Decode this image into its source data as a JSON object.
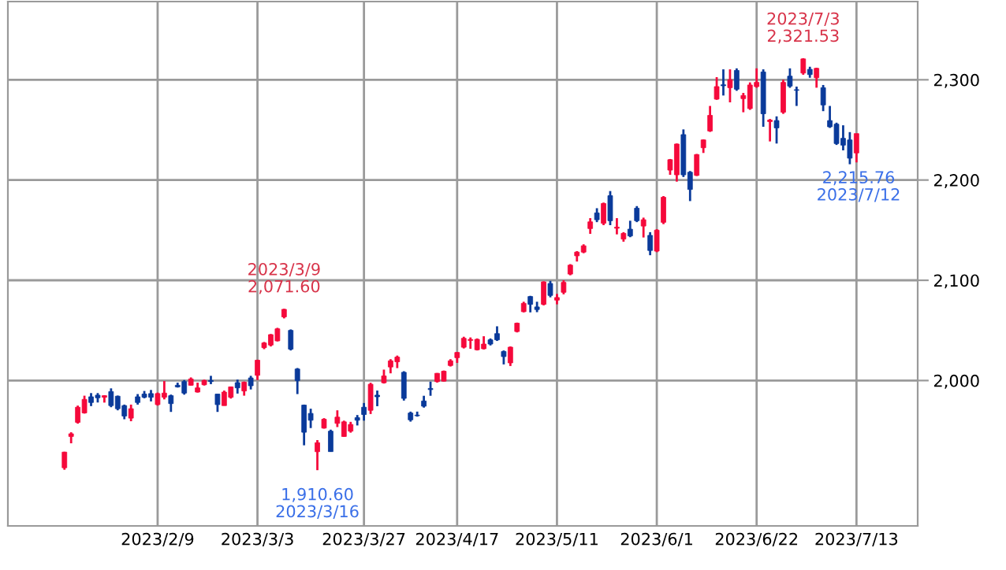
{
  "chart_data": {
    "type": "candlestick",
    "categories": [
      null,
      null,
      null,
      null,
      null,
      null,
      null,
      null,
      null,
      null,
      null,
      null,
      null,
      null,
      "2023/2/9",
      null,
      null,
      null,
      null,
      null,
      null,
      null,
      null,
      null,
      null,
      null,
      null,
      null,
      null,
      "2023/3/3",
      null,
      null,
      null,
      null,
      null,
      null,
      null,
      null,
      null,
      null,
      null,
      null,
      null,
      null,
      null,
      "2023/3/27",
      null,
      null,
      null,
      null,
      null,
      null,
      null,
      null,
      null,
      null,
      null,
      null,
      null,
      "2023/4/17",
      null,
      null,
      null,
      null,
      null,
      null,
      null,
      null,
      null,
      null,
      null,
      null,
      null,
      null,
      "2023/5/11",
      null,
      null,
      null,
      null,
      null,
      null,
      null,
      null,
      null,
      null,
      null,
      null,
      null,
      null,
      "2023/6/1",
      null,
      null,
      null,
      null,
      null,
      null,
      null,
      null,
      null,
      null,
      null,
      null,
      null,
      null,
      "2023/6/22",
      null,
      null,
      null,
      null,
      null,
      null,
      null,
      null,
      null,
      null,
      null,
      null,
      null,
      null,
      "2023/7/13"
    ],
    "ohlc": [
      [
        1913,
        1929,
        1911,
        1928.6
      ],
      [
        1944.2,
        1948.4,
        1937.4,
        1946.9
      ],
      [
        1958.3,
        1975,
        1957,
        1973.4
      ],
      [
        1967.7,
        1984.9,
        1967,
        1981.2
      ],
      [
        1983.8,
        1987.5,
        1974.5,
        1978.1
      ],
      [
        1985.4,
        1987.5,
        1978.1,
        1982.8
      ],
      [
        1983.3,
        1985.4,
        1978,
        1984.9
      ],
      [
        1989,
        1992.2,
        1973.4,
        1975
      ],
      [
        1984.4,
        1985,
        1970.3,
        1971.9
      ],
      [
        1975,
        1976,
        1961.4,
        1964.6
      ],
      [
        1962.5,
        1976,
        1959.4,
        1971.9
      ],
      [
        1983.8,
        1986.5,
        1976,
        1978.1
      ],
      [
        1986.5,
        1989.6,
        1982.3,
        1983.3
      ],
      [
        1987,
        1990.6,
        1979.2,
        1983.3
      ],
      [
        1976,
        1988,
        1975,
        1987
      ],
      [
        1983.3,
        1999.5,
        1981.2,
        1987.5
      ],
      [
        1984.9,
        1986,
        1968.7,
        1977
      ],
      [
        1995.3,
        1997.9,
        1993,
        1993.7
      ],
      [
        1999,
        2000.5,
        1985.9,
        1987.5
      ],
      [
        1995.3,
        2003.1,
        1995,
        2001.6
      ],
      [
        1988.5,
        1997.9,
        1988,
        1992.7
      ],
      [
        1995.8,
        2001,
        1995,
        2000
      ],
      [
        2000,
        2004.7,
        1996.4,
        1999
      ],
      [
        1986.5,
        1986.5,
        1968.7,
        1976
      ],
      [
        1975,
        1990,
        1975,
        1988.5
      ],
      [
        1983.3,
        1994,
        1982,
        1993.7
      ],
      [
        1997.9,
        2001,
        1987,
        1992.7
      ],
      [
        1989.6,
        1999,
        1984.9,
        1998.4
      ],
      [
        2002.6,
        2004.7,
        1991.1,
        1994.8
      ],
      [
        2005.2,
        2020.8,
        2000.5,
        2020.3
      ],
      [
        2032.8,
        2038.5,
        2031.3,
        2037.5
      ],
      [
        2035.4,
        2046.4,
        2034,
        2045.8
      ],
      [
        2039.6,
        2052.6,
        2039,
        2051.6
      ],
      [
        2063.5,
        2071.6,
        2062,
        2071
      ],
      [
        2050,
        2051,
        2030,
        2031.3
      ],
      [
        2011.5,
        2012.5,
        1986.5,
        2000
      ],
      [
        1975.5,
        1976,
        1935.4,
        1948.4
      ],
      [
        1967.2,
        1971.9,
        1952.6,
        1960.4
      ],
      [
        1929,
        1940.6,
        1910.6,
        1938
      ],
      [
        1952.6,
        1962.5,
        1952,
        1961.4
      ],
      [
        1949.5,
        1951,
        1929,
        1929.1
      ],
      [
        1957.3,
        1970.3,
        1953.6,
        1963.5
      ],
      [
        1944.2,
        1960,
        1944,
        1958.8
      ],
      [
        1949.5,
        1958.8,
        1948,
        1956.2
      ],
      [
        1963,
        1965.6,
        1955.2,
        1960.4
      ],
      [
        1973.4,
        1977.6,
        1960,
        1966.1
      ],
      [
        1970.3,
        1997.8,
        1966.6,
        1996.3
      ],
      [
        1985.4,
        1990,
        1974.4,
        1983.8
      ],
      [
        1997.8,
        2010.9,
        1997,
        2004.6
      ],
      [
        2013.5,
        2021.3,
        2007.2,
        2019.7
      ],
      [
        2018.7,
        2024.9,
        2012.4,
        2023.4
      ],
      [
        2008.2,
        2009.3,
        1980,
        1982.2
      ],
      [
        1967.6,
        1969,
        1959,
        1960.8
      ],
      [
        1965.5,
        1969,
        1964,
        1964.9
      ],
      [
        1979.6,
        1984.8,
        1973,
        1974.4
      ],
      [
        1992.1,
        1998.9,
        1984.8,
        1991
      ],
      [
        1998.9,
        2007.5,
        1998,
        2007.2
      ],
      [
        1999.4,
        2010,
        1999,
        2009.3
      ],
      [
        2015,
        2021.3,
        2014,
        2019.7
      ],
      [
        2022.8,
        2028.5,
        2017.6,
        2028
      ],
      [
        2033.2,
        2043.7,
        2032,
        2042.1
      ],
      [
        2040,
        2043,
        2031.7,
        2041
      ],
      [
        2030.7,
        2042,
        2030,
        2041.1
      ],
      [
        2031.7,
        2044.2,
        2031,
        2036.4
      ],
      [
        2040.6,
        2042,
        2035,
        2036.4
      ],
      [
        2046.8,
        2054.1,
        2039.5,
        2040.6
      ],
      [
        2029,
        2030,
        2016.1,
        2023.9
      ],
      [
        2017.6,
        2034,
        2014.5,
        2033.3
      ],
      [
        2048.9,
        2057.8,
        2048,
        2057.2
      ],
      [
        2068.7,
        2078.6,
        2068,
        2077
      ],
      [
        2083.8,
        2084.5,
        2068,
        2076
      ],
      [
        2073.4,
        2078.6,
        2068.2,
        2070.8
      ],
      [
        2076,
        2099,
        2075,
        2098.4
      ],
      [
        2096.8,
        2099.4,
        2083,
        2084.9
      ],
      [
        2080.2,
        2086.4,
        2076,
        2082.8
      ],
      [
        2088,
        2100,
        2086,
        2097.9
      ],
      [
        2106.2,
        2116.1,
        2105,
        2115.1
      ],
      [
        2124.4,
        2129.1,
        2118.7,
        2128.1
      ],
      [
        2128.1,
        2135.9,
        2127,
        2134.4
      ],
      [
        2151.6,
        2162,
        2146.3,
        2158.3
      ],
      [
        2167.2,
        2171.9,
        2158,
        2160.4
      ],
      [
        2156.8,
        2177.5,
        2155,
        2176.6
      ],
      [
        2184.4,
        2189,
        2155,
        2159.4
      ],
      [
        2151.9,
        2162,
        2145.8,
        2153
      ],
      [
        2141.1,
        2148,
        2138.5,
        2146.8
      ],
      [
        2151,
        2159.4,
        2143,
        2144.2
      ],
      [
        2171.9,
        2174,
        2158,
        2159.4
      ],
      [
        2154.1,
        2162.5,
        2142.7,
        2160.4
      ],
      [
        2144.8,
        2148,
        2125,
        2129.7
      ],
      [
        2129.1,
        2151,
        2128,
        2150
      ],
      [
        2157.8,
        2184,
        2156,
        2182.8
      ],
      [
        2209.9,
        2221,
        2205.2,
        2220.3
      ],
      [
        2205.2,
        2236.4,
        2198.4,
        2235.9
      ],
      [
        2245.3,
        2250.5,
        2203,
        2205.2
      ],
      [
        2207.8,
        2209,
        2179,
        2190.6
      ],
      [
        2204.6,
        2226,
        2204,
        2225.4
      ],
      [
        2232.2,
        2240.5,
        2227,
        2240
      ],
      [
        2248.9,
        2273.9,
        2248,
        2264.5
      ],
      [
        2280.7,
        2302.6,
        2280,
        2293.2
      ],
      [
        2295,
        2310.4,
        2284.3,
        2294
      ],
      [
        2292.1,
        2310.4,
        2277.5,
        2300
      ],
      [
        2309.3,
        2311.4,
        2289,
        2290.6
      ],
      [
        2281.2,
        2286.9,
        2267.6,
        2284.3
      ],
      [
        2271.3,
        2297.4,
        2270,
        2294.8
      ],
      [
        2293.2,
        2311.4,
        2292,
        2297.4
      ],
      [
        2307.8,
        2310.4,
        2253.1,
        2266.1
      ],
      [
        2258.3,
        2260.9,
        2238.5,
        2259.8
      ],
      [
        2259.3,
        2263.5,
        2236.4,
        2252
      ],
      [
        2267.6,
        2300,
        2266,
        2297.4
      ],
      [
        2303.6,
        2311.4,
        2292,
        2293.7
      ],
      [
        2290,
        2293.2,
        2273.9,
        2289.5
      ],
      [
        2306.7,
        2321.53,
        2305,
        2320.8
      ],
      [
        2310.4,
        2313,
        2302,
        2305.2
      ],
      [
        2302,
        2312,
        2292.1,
        2311.4
      ],
      [
        2292.1,
        2294.8,
        2268.7,
        2274.9
      ],
      [
        2259.3,
        2273.9,
        2252,
        2253.1
      ],
      [
        2255.7,
        2257.2,
        2235,
        2236.4
      ],
      [
        2241.6,
        2254.6,
        2229.6,
        2234.8
      ],
      [
        2240,
        2247.8,
        2215.76,
        2221.8
      ],
      [
        2227,
        2246.3,
        2217.6,
        2246.3
      ]
    ],
    "colors": [
      "#f5093b",
      "#f5093b",
      "#f5093b",
      "#f5093b",
      "#0a3a9a",
      "#0a3a9a",
      "#f5093b",
      "#0a3a9a",
      "#0a3a9a",
      "#0a3a9a",
      "#f5093b",
      "#0a3a9a",
      "#0a3a9a",
      "#0a3a9a",
      "#f5093b",
      "#f5093b",
      "#0a3a9a",
      "#0a3a9a",
      "#0a3a9a",
      "#f5093b",
      "#f5093b",
      "#f5093b",
      "#0a3a9a",
      "#0a3a9a",
      "#f5093b",
      "#f5093b",
      "#0a3a9a",
      "#f5093b",
      "#0a3a9a",
      "#f5093b",
      "#f5093b",
      "#f5093b",
      "#f5093b",
      "#f5093b",
      "#0a3a9a",
      "#0a3a9a",
      "#0a3a9a",
      "#0a3a9a",
      "#f5093b",
      "#f5093b",
      "#0a3a9a",
      "#f5093b",
      "#f5093b",
      "#f5093b",
      "#0a3a9a",
      "#0a3a9a",
      "#f5093b",
      "#0a3a9a",
      "#f5093b",
      "#f5093b",
      "#f5093b",
      "#0a3a9a",
      "#0a3a9a",
      "#0a3a9a",
      "#0a3a9a",
      "#0a3a9a",
      "#f5093b",
      "#f5093b",
      "#f5093b",
      "#f5093b",
      "#f5093b",
      "#f5093b",
      "#f5093b",
      "#f5093b",
      "#0a3a9a",
      "#0a3a9a",
      "#0a3a9a",
      "#f5093b",
      "#f5093b",
      "#f5093b",
      "#0a3a9a",
      "#0a3a9a",
      "#f5093b",
      "#0a3a9a",
      "#f5093b",
      "#f5093b",
      "#f5093b",
      "#f5093b",
      "#f5093b",
      "#f5093b",
      "#0a3a9a",
      "#f5093b",
      "#0a3a9a",
      "#f5093b",
      "#f5093b",
      "#0a3a9a",
      "#0a3a9a",
      "#f5093b",
      "#0a3a9a",
      "#f5093b",
      "#f5093b",
      "#f5093b",
      "#f5093b",
      "#0a3a9a",
      "#0a3a9a",
      "#f5093b",
      "#f5093b",
      "#f5093b",
      "#f5093b",
      "#0a3a9a",
      "#f5093b",
      "#0a3a9a",
      "#f5093b",
      "#f5093b",
      "#f5093b",
      "#0a3a9a",
      "#f5093b",
      "#0a3a9a",
      "#f5093b",
      "#0a3a9a",
      "#0a3a9a",
      "#f5093b",
      "#0a3a9a",
      "#f5093b",
      "#0a3a9a",
      "#0a3a9a",
      "#0a3a9a",
      "#0a3a9a",
      "#0a3a9a",
      "#f5093b"
    ],
    "ylim": [
      1855,
      2378
    ],
    "yticks": [
      {
        "value": 2000,
        "label": "2,000"
      },
      {
        "value": 2100,
        "label": "2,100"
      },
      {
        "value": 2200,
        "label": "2,200"
      },
      {
        "value": 2300,
        "label": "2,300"
      }
    ],
    "grid": true,
    "annotations": [
      {
        "text": "2023/3/9\n2,071.60",
        "y": 2071.6
      },
      {
        "text": "1,910.60\n2023/3/16",
        "y": 1910.6
      },
      {
        "text": "2023/7/3\n2,321.53",
        "y": 2321.53
      },
      {
        "text": "2,215.76\n2023/7/12",
        "y": 2215.76
      }
    ]
  }
}
